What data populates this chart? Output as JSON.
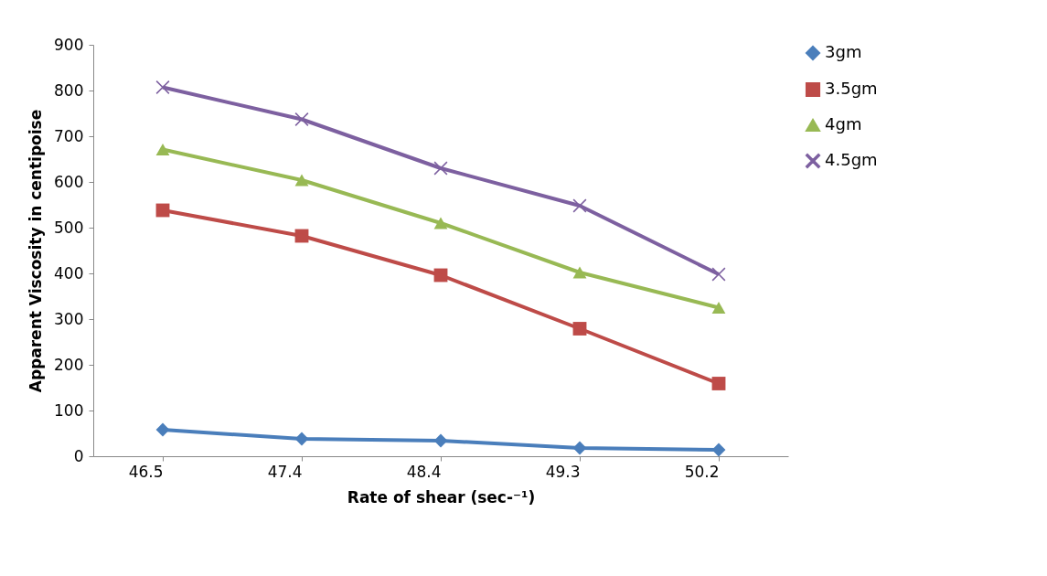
{
  "chart_data": {
    "type": "line",
    "xlabel": "Rate of shear (sec-⁻¹)",
    "ylabel": "Apparent Viscosity in centipoise",
    "categories": [
      "46.5",
      "47.4",
      "48.4",
      "49.3",
      "50.2"
    ],
    "series": [
      {
        "name": "3gm",
        "color": "#4a7ebb",
        "marker": "diamond",
        "values": [
          58,
          38,
          34,
          18,
          14
        ]
      },
      {
        "name": "3.5gm",
        "color": "#be4b48",
        "marker": "square",
        "values": [
          538,
          482,
          396,
          279,
          159
        ]
      },
      {
        "name": "4gm",
        "color": "#98b954",
        "marker": "triangle",
        "values": [
          671,
          604,
          510,
          402,
          325
        ]
      },
      {
        "name": "4.5gm",
        "color": "#7d60a0",
        "marker": "cross",
        "values": [
          807,
          737,
          630,
          548,
          398
        ]
      }
    ],
    "ylim": [
      0,
      900
    ],
    "yticks": [
      0,
      100,
      200,
      300,
      400,
      500,
      600,
      700,
      800,
      900
    ],
    "grid": false,
    "legend": "right",
    "line_style": "solid"
  }
}
